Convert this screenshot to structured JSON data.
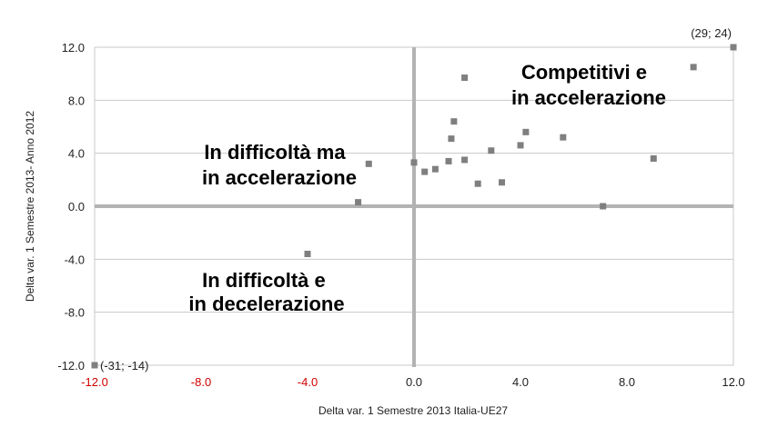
{
  "chart_data": {
    "type": "scatter",
    "xlabel": "Delta var. 1 Semestre 2013 Italia-UE27",
    "ylabel": "Delta var. 1 Semestre 2013- Anno 2012",
    "xlim": [
      -12,
      12
    ],
    "ylim": [
      -12,
      12
    ],
    "x_ticks": [
      "-12.0",
      "-8.0",
      "-4.0",
      "0.0",
      "4.0",
      "8.0",
      "12.0"
    ],
    "y_ticks": [
      "-12.0",
      "-8.0",
      "-4.0",
      "0.0",
      "4.0",
      "8.0",
      "12.0"
    ],
    "x_tick_values": [
      -12,
      -8,
      -4,
      0,
      4,
      8,
      12
    ],
    "y_tick_values": [
      -12,
      -8,
      -4,
      0,
      4,
      8,
      12
    ],
    "grid": true,
    "points": [
      {
        "x": 12.0,
        "y": 12.0
      },
      {
        "x": -12.0,
        "y": -12.0
      },
      {
        "x": 10.5,
        "y": 10.5
      },
      {
        "x": 1.9,
        "y": 9.7
      },
      {
        "x": 1.5,
        "y": 6.4
      },
      {
        "x": 4.2,
        "y": 5.6
      },
      {
        "x": 1.4,
        "y": 5.1
      },
      {
        "x": 5.6,
        "y": 5.2
      },
      {
        "x": 4.0,
        "y": 4.6
      },
      {
        "x": 2.9,
        "y": 4.2
      },
      {
        "x": 9.0,
        "y": 3.6
      },
      {
        "x": 1.9,
        "y": 3.5
      },
      {
        "x": 1.3,
        "y": 3.4
      },
      {
        "x": 0.0,
        "y": 3.3
      },
      {
        "x": -1.7,
        "y": 3.2
      },
      {
        "x": 0.8,
        "y": 2.8
      },
      {
        "x": 0.4,
        "y": 2.6
      },
      {
        "x": 2.4,
        "y": 1.7
      },
      {
        "x": 3.3,
        "y": 1.8
      },
      {
        "x": -2.1,
        "y": 0.3
      },
      {
        "x": 7.1,
        "y": 0.0
      },
      {
        "x": -4.0,
        "y": -3.6
      }
    ],
    "point_labels": [
      {
        "text": "(29; 24)",
        "x": 12.0,
        "y": 12.0
      },
      {
        "text": "(-31; -14)",
        "x": -12.0,
        "y": -12.0
      }
    ],
    "quadrant_labels": {
      "top_right": [
        "Competitivi e",
        "in accelerazione"
      ],
      "top_left": [
        "In difficoltà ma",
        "in accelerazione"
      ],
      "bottom_left": [
        "In difficoltà e",
        "in decelerazione"
      ]
    },
    "colors": {
      "marker": "#7f7f7f",
      "grid": "#c8c8c8",
      "zero_axes": "#b3b3b3",
      "negative_ticks": "#d00000",
      "positive_ticks": "#222222",
      "top_right_label": "#1010e0",
      "top_left_label": "#9a4a6a",
      "bottom_left_label": "#e01010"
    }
  }
}
